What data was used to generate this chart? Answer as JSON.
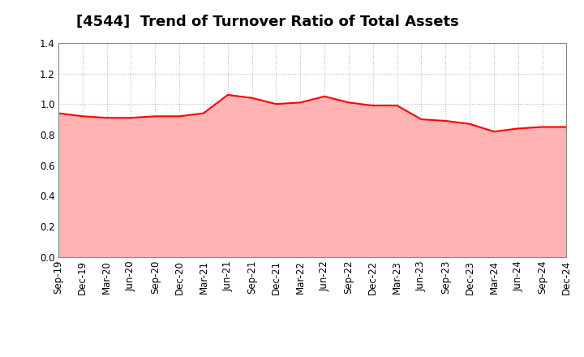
{
  "title": "[4544]  Trend of Turnover Ratio of Total Assets",
  "x_labels": [
    "Sep-19",
    "Dec-19",
    "Mar-20",
    "Jun-20",
    "Sep-20",
    "Dec-20",
    "Mar-21",
    "Jun-21",
    "Sep-21",
    "Dec-21",
    "Mar-22",
    "Jun-22",
    "Sep-22",
    "Dec-22",
    "Mar-23",
    "Jun-23",
    "Sep-23",
    "Dec-23",
    "Mar-24",
    "Jun-24",
    "Sep-24",
    "Dec-24"
  ],
  "y_values": [
    0.94,
    0.92,
    0.91,
    0.91,
    0.92,
    0.92,
    0.94,
    1.06,
    1.04,
    1.0,
    1.01,
    1.05,
    1.01,
    0.99,
    0.99,
    0.9,
    0.89,
    0.87,
    0.82,
    0.84,
    0.85,
    0.85
  ],
  "line_color": "#ff0000",
  "fill_color": "#ffb3b3",
  "ylim": [
    0.0,
    1.4
  ],
  "yticks": [
    0.0,
    0.2,
    0.4,
    0.6,
    0.8,
    1.0,
    1.2,
    1.4
  ],
  "grid_color": "#bbbbbb",
  "background_color": "#ffffff",
  "title_fontsize": 13,
  "tick_fontsize": 8.5
}
